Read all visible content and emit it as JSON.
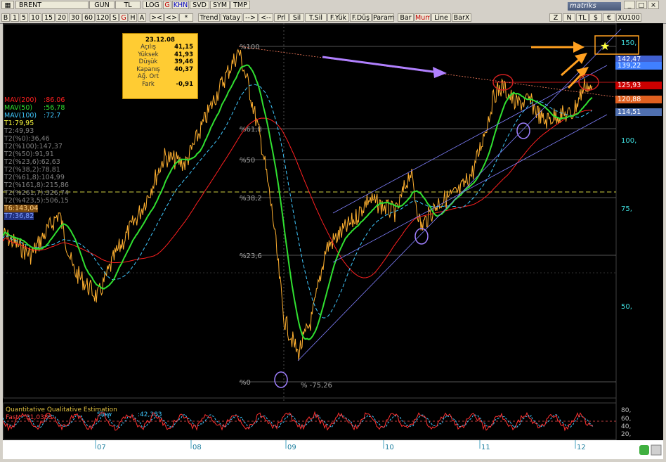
{
  "window": {
    "symbol": "BRENT",
    "logo": "matriks"
  },
  "toolbar1": [
    "GUN",
    "TL",
    "LOG",
    "G",
    "KHN",
    "SVD",
    "SYM",
    "TMP"
  ],
  "toolbar2": {
    "periods": [
      "B",
      "1",
      "5",
      "10",
      "15",
      "20",
      "30",
      "60",
      "120",
      "S",
      "G",
      "H",
      "A"
    ],
    "nav": [
      "><",
      "<>",
      "*"
    ],
    "tools": [
      "Trend",
      "Yatay",
      "-->",
      "<--",
      "Prl",
      "Sil",
      "T.Sil",
      "F.Yük",
      "F.Düş",
      "Param"
    ],
    "charttypes": [
      "Bar",
      "Mum",
      "Line",
      "BarX"
    ],
    "zoom": [
      "Z",
      "N",
      "TL",
      "$",
      "€",
      "XU100"
    ]
  },
  "info": {
    "date": "23.12.08",
    "rows": [
      [
        "Açılış",
        "41,15"
      ],
      [
        "Yüksek",
        "41,93"
      ],
      [
        "Düşük",
        "39,46"
      ],
      [
        "Kapanış",
        "40,37"
      ],
      [
        "Ağ. Ort",
        "  "
      ],
      [
        "Fark",
        "-0,91"
      ]
    ]
  },
  "legend": [
    {
      "t": "MAV(200)",
      "v": ":86.06",
      "c": "#ff2020"
    },
    {
      "t": "MAV(50)",
      "v": ":56,78",
      "c": "#30e030"
    },
    {
      "t": "MAV(100)",
      "v": ":72,7",
      "c": "#40c8ff"
    },
    {
      "t": "T1:79,95",
      "v": "",
      "c": "#ffff40"
    },
    {
      "t": "T2:49,93",
      "v": "",
      "c": "#808080"
    },
    {
      "t": "T2(%0):36,46",
      "v": "",
      "c": "#808080"
    },
    {
      "t": "T2(%100):147,37",
      "v": "",
      "c": "#808080"
    },
    {
      "t": "T2(%50):91,91",
      "v": "",
      "c": "#808080"
    },
    {
      "t": "T2(%23,6):62,63",
      "v": "",
      "c": "#808080"
    },
    {
      "t": "T2(%38,2):78,81",
      "v": "",
      "c": "#808080"
    },
    {
      "t": "T2(%61,8):104,99",
      "v": "",
      "c": "#808080"
    },
    {
      "t": "T2(%161,8):215,86",
      "v": "",
      "c": "#808080"
    },
    {
      "t": "T2(%261,7):326,74",
      "v": "",
      "c": "#808080"
    },
    {
      "t": "T2(%423,5):506,15",
      "v": "",
      "c": "#808080"
    },
    {
      "t": "T6:143,04",
      "v": "",
      "c": "#ff8080",
      "sel": true
    },
    {
      "t": "T7:36,82",
      "v": "",
      "c": "#5080ff",
      "sel2": true
    }
  ],
  "fib_labels": [
    "%100",
    "%61,8",
    "%50",
    "%38,2",
    "%23,6",
    "%0",
    "% -75,26"
  ],
  "price_axis": [
    "150,",
    "100,",
    "75,",
    "50,"
  ],
  "price_tags": [
    {
      "t": "142,47",
      "bg": "#4060d0"
    },
    {
      "t": "139,22",
      "bg": "#4080ff"
    },
    {
      "t": "125,93",
      "bg": "#cc0000"
    },
    {
      "t": "120,88",
      "bg": "#e06020"
    },
    {
      "t": "114,51",
      "bg": "#5070b0"
    }
  ],
  "x_axis": [
    "07",
    "08",
    "09",
    "10",
    "11",
    "12"
  ],
  "oscillator": {
    "title": "Quantitative Qualitative Estimation",
    "fast_label": "Fast",
    "fast_value": ":31,0388",
    "slow_label": "Slow",
    "slow_value": ":42,383",
    "levels": [
      "80,",
      "60,",
      "40,",
      "20,"
    ]
  },
  "chart_data": {
    "type": "line",
    "series": [
      {
        "name": "MAV(200)",
        "values": []
      },
      {
        "name": "MAV(50)",
        "values": []
      },
      {
        "name": "MAV(100)",
        "values": []
      }
    ],
    "ylabels": [
      "150",
      "100",
      "75",
      "50"
    ],
    "xlabels": [
      "07",
      "08",
      "09",
      "10",
      "11",
      "12"
    ]
  },
  "colors": {
    "bg": "#000000",
    "price": "#ffb030",
    "ma200": "#ff2020",
    "ma50": "#30e030",
    "ma100": "#40c8ff",
    "grid": "#303030"
  }
}
